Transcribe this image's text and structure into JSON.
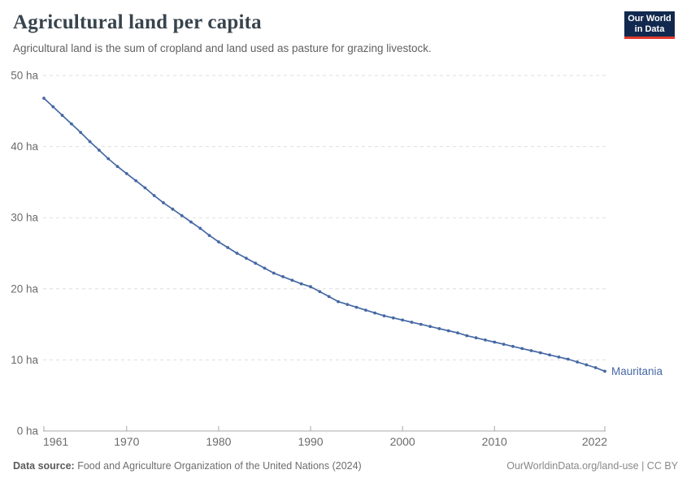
{
  "header": {
    "title": "Agricultural land per capita",
    "subtitle": "Agricultural land is the sum of cropland and land used as pasture for grazing livestock.",
    "logo": {
      "line1": "Our World",
      "line2": "in Data",
      "bg_color": "#12294F",
      "accent_color": "#E23A2E"
    }
  },
  "chart_data": {
    "type": "line",
    "title": "Agricultural land per capita",
    "xlabel": "",
    "ylabel": "",
    "unit": "ha",
    "ylim": [
      0,
      50
    ],
    "yticks": [
      0,
      10,
      20,
      30,
      40,
      50
    ],
    "ytick_suffix": " ha",
    "xticks": [
      1961,
      1970,
      1980,
      1990,
      2000,
      2010,
      2022
    ],
    "grid": "horizontal-dashed",
    "legend_position": "end-of-line-label",
    "x": [
      1961,
      1962,
      1963,
      1964,
      1965,
      1966,
      1967,
      1968,
      1969,
      1970,
      1971,
      1972,
      1973,
      1974,
      1975,
      1976,
      1977,
      1978,
      1979,
      1980,
      1981,
      1982,
      1983,
      1984,
      1985,
      1986,
      1987,
      1988,
      1989,
      1990,
      1991,
      1992,
      1993,
      1994,
      1995,
      1996,
      1997,
      1998,
      1999,
      2000,
      2001,
      2002,
      2003,
      2004,
      2005,
      2006,
      2007,
      2008,
      2009,
      2010,
      2011,
      2012,
      2013,
      2014,
      2015,
      2016,
      2017,
      2018,
      2019,
      2020,
      2021,
      2022
    ],
    "series": [
      {
        "name": "Mauritania",
        "color": "#4668A4",
        "values": [
          46.8,
          45.6,
          44.4,
          43.2,
          42.0,
          40.7,
          39.5,
          38.3,
          37.2,
          36.2,
          35.2,
          34.2,
          33.1,
          32.1,
          31.2,
          30.3,
          29.4,
          28.5,
          27.5,
          26.6,
          25.8,
          25.0,
          24.3,
          23.6,
          22.9,
          22.2,
          21.7,
          21.2,
          20.7,
          20.3,
          19.6,
          18.9,
          18.2,
          17.8,
          17.4,
          17.0,
          16.6,
          16.2,
          15.9,
          15.6,
          15.3,
          15.0,
          14.7,
          14.4,
          14.1,
          13.8,
          13.4,
          13.1,
          12.8,
          12.5,
          12.2,
          11.9,
          11.6,
          11.3,
          11.0,
          10.7,
          10.4,
          10.1,
          9.7,
          9.3,
          8.9,
          8.4
        ]
      }
    ],
    "style": {
      "grid_color": "#dedede",
      "axis_color": "#a8a8a8",
      "tick_label_color": "#6b6b6b"
    }
  },
  "footer": {
    "source_label": "Data source:",
    "source_text": " Food and Agriculture Organization of the United Nations (2024)",
    "link_text": "OurWorldinData.org/land-use | CC BY"
  }
}
